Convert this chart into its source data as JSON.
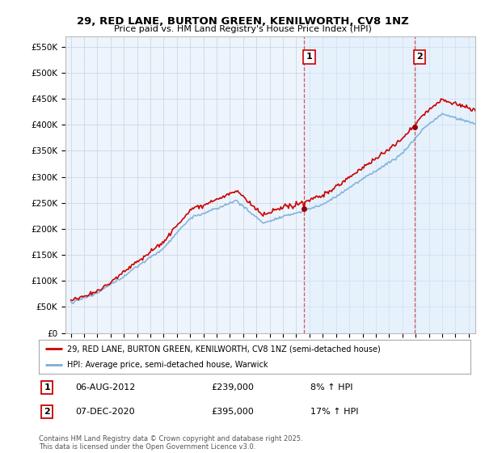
{
  "title": "29, RED LANE, BURTON GREEN, KENILWORTH, CV8 1NZ",
  "subtitle": "Price paid vs. HM Land Registry's House Price Index (HPI)",
  "legend_line1": "29, RED LANE, BURTON GREEN, KENILWORTH, CV8 1NZ (semi-detached house)",
  "legend_line2": "HPI: Average price, semi-detached house, Warwick",
  "footnote": "Contains HM Land Registry data © Crown copyright and database right 2025.\nThis data is licensed under the Open Government Licence v3.0.",
  "annotation1_date": "06-AUG-2012",
  "annotation1_price": "£239,000",
  "annotation1_hpi": "8% ↑ HPI",
  "annotation2_date": "07-DEC-2020",
  "annotation2_price": "£395,000",
  "annotation2_hpi": "17% ↑ HPI",
  "sale1_year": 2012.58,
  "sale1_price": 239000,
  "sale2_year": 2020.92,
  "sale2_price": 395000,
  "ylim": [
    0,
    570000
  ],
  "yticks": [
    0,
    50000,
    100000,
    150000,
    200000,
    250000,
    300000,
    350000,
    400000,
    450000,
    500000,
    550000
  ],
  "ytick_labels": [
    "£0",
    "£50K",
    "£100K",
    "£150K",
    "£200K",
    "£250K",
    "£300K",
    "£350K",
    "£400K",
    "£450K",
    "£500K",
    "£550K"
  ],
  "color_red": "#cc0000",
  "color_blue": "#7aaed6",
  "color_blue_fill": "#ddeeff",
  "background_color": "#ffffff",
  "plot_bg": "#eef4fb",
  "grid_color": "#c8d8e8",
  "xmin": 1995,
  "xmax": 2025.5
}
